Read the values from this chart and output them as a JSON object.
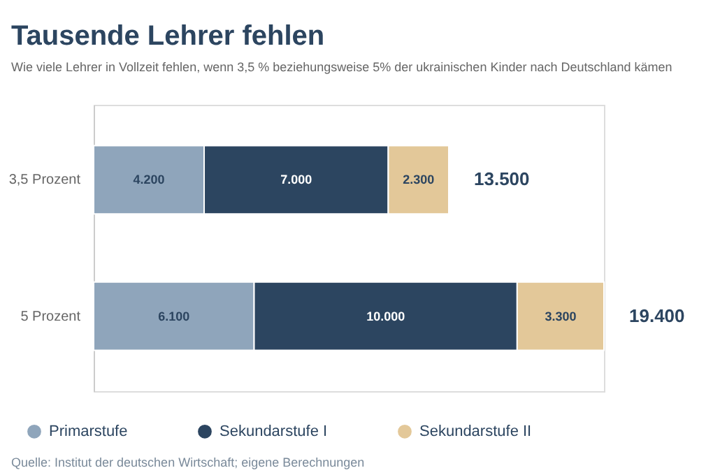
{
  "chart_data": {
    "type": "bar",
    "orientation": "horizontal",
    "stacked": true,
    "title": "Tausende Lehrer fehlen",
    "subtitle": "Wie viele Lehrer in Vollzeit fehlen, wenn 3,5 % beziehungsweise 5% der ukrainischen Kinder nach Deutschland kämen",
    "categories": [
      "3,5 Prozent",
      "5 Prozent"
    ],
    "series": [
      {
        "name": "Primarstufe",
        "color": "#8fa5bb",
        "values": [
          4200,
          6100
        ],
        "value_labels": [
          "4.200",
          "6.100"
        ]
      },
      {
        "name": "Sekundarstufe I",
        "color": "#2c4560",
        "values": [
          7000,
          10000
        ],
        "value_labels": [
          "7.000",
          "10.000"
        ]
      },
      {
        "name": "Sekundarstufe II",
        "color": "#e3c899",
        "values": [
          2300,
          3300
        ],
        "value_labels": [
          "2.300",
          "3.300"
        ]
      }
    ],
    "totals": [
      "13.500",
      "19.400"
    ],
    "legend": "bottom left",
    "grid": false,
    "annotations": [
      "Quelle: Institut der deutschen Wirtschaft; eigene Berechnungen"
    ]
  }
}
